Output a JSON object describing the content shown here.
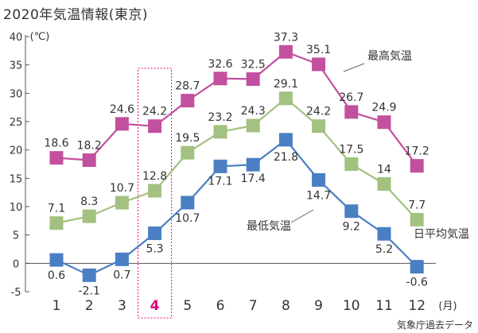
{
  "chart_data": {
    "type": "line",
    "title": "2020年気温情報(東京)",
    "ylabel": "(℃)",
    "xlabel": "(月)",
    "source": "気象庁過去データ",
    "categories": [
      "1",
      "2",
      "3",
      "4",
      "5",
      "6",
      "7",
      "8",
      "9",
      "10",
      "11",
      "12"
    ],
    "highlighted_category": "4",
    "ylim": [
      -5,
      40
    ],
    "yticks": [
      -5,
      0,
      5,
      10,
      15,
      20,
      25,
      30,
      35,
      40
    ],
    "grid": false,
    "series": [
      {
        "name": "最高気温",
        "color": "#c34f9f",
        "values": [
          18.6,
          18.2,
          24.6,
          24.2,
          28.7,
          32.6,
          32.5,
          37.3,
          35.1,
          26.7,
          24.9,
          17.2
        ]
      },
      {
        "name": "日平均気温",
        "color": "#a3c180",
        "values": [
          7.1,
          8.3,
          10.7,
          12.8,
          19.5,
          23.2,
          24.3,
          29.1,
          24.2,
          17.5,
          14,
          7.7
        ]
      },
      {
        "name": "最低気温",
        "color": "#4a7fc3",
        "values": [
          0.6,
          -2.1,
          0.7,
          5.3,
          10.7,
          17.1,
          17.4,
          21.8,
          14.7,
          9.2,
          5.2,
          -0.6
        ]
      }
    ],
    "highlight_color": "#e5007f",
    "axis_color": "#555555",
    "text_color": "#333333"
  }
}
